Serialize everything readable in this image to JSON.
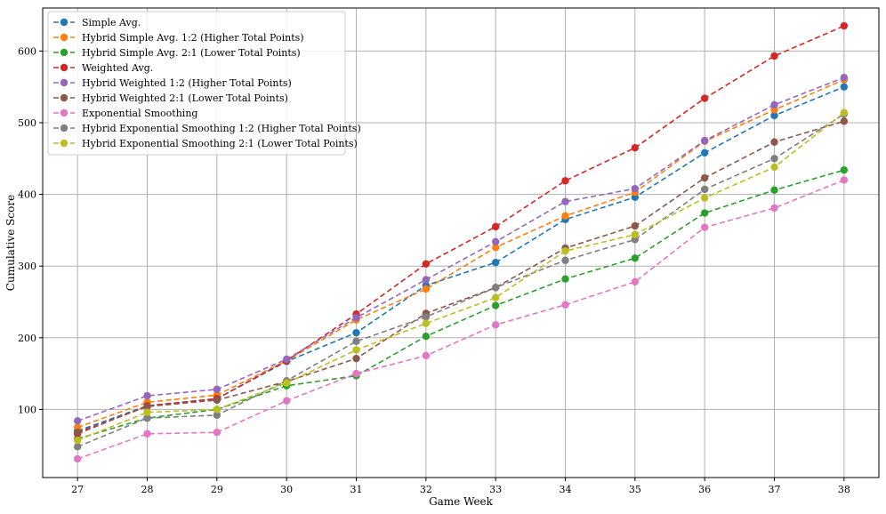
{
  "chart_data": {
    "type": "line",
    "xlabel": "Game Week",
    "ylabel": "Cumulative Score",
    "x": [
      27,
      28,
      29,
      30,
      31,
      32,
      33,
      34,
      35,
      36,
      37,
      38
    ],
    "xlim": [
      26.5,
      38.5
    ],
    "ylim": [
      5,
      660
    ],
    "yticks": [
      100,
      200,
      300,
      400,
      500,
      600
    ],
    "grid": true,
    "legend_position": "top-left",
    "series": [
      {
        "name": "Simple Avg.",
        "color": "#1f77b4",
        "values": [
          70,
          105,
          115,
          167,
          207,
          273,
          305,
          365,
          396,
          458,
          510,
          550
        ]
      },
      {
        "name": "Hybrid Simple Avg. 1:2 (Higher Total Points)",
        "color": "#ff7f0e",
        "values": [
          75,
          110,
          120,
          168,
          225,
          268,
          326,
          370,
          403,
          474,
          518,
          560
        ]
      },
      {
        "name": "Hybrid Simple Avg. 2:1 (Lower Total Points)",
        "color": "#2ca02c",
        "values": [
          59,
          88,
          100,
          133,
          147,
          202,
          245,
          282,
          311,
          374,
          406,
          434
        ]
      },
      {
        "name": "Weighted Avg.",
        "color": "#d62728",
        "values": [
          66,
          105,
          115,
          168,
          233,
          303,
          355,
          419,
          465,
          534,
          593,
          635
        ]
      },
      {
        "name": "Hybrid Weighted 1:2 (Higher Total Points)",
        "color": "#9467bd",
        "values": [
          84,
          119,
          128,
          170,
          228,
          281,
          334,
          390,
          408,
          475,
          525,
          563
        ]
      },
      {
        "name": "Hybrid Weighted 2:1 (Lower Total Points)",
        "color": "#8c564b",
        "values": [
          68,
          104,
          113,
          139,
          171,
          234,
          270,
          325,
          356,
          423,
          473,
          502
        ]
      },
      {
        "name": "Exponential Smoothing",
        "color": "#e377c2",
        "values": [
          31,
          66,
          68,
          112,
          150,
          175,
          218,
          246,
          278,
          354,
          381,
          420
        ]
      },
      {
        "name": "Hybrid Exponential Smoothing 1:2 (Higher Total Points)",
        "color": "#7f7f7f",
        "values": [
          48,
          88,
          92,
          140,
          195,
          229,
          270,
          308,
          337,
          407,
          450,
          512
        ]
      },
      {
        "name": "Hybrid Exponential Smoothing 2:1 (Lower Total Points)",
        "color": "#bcbd22",
        "values": [
          57,
          96,
          100,
          137,
          183,
          220,
          256,
          321,
          344,
          395,
          438,
          514
        ]
      }
    ]
  }
}
